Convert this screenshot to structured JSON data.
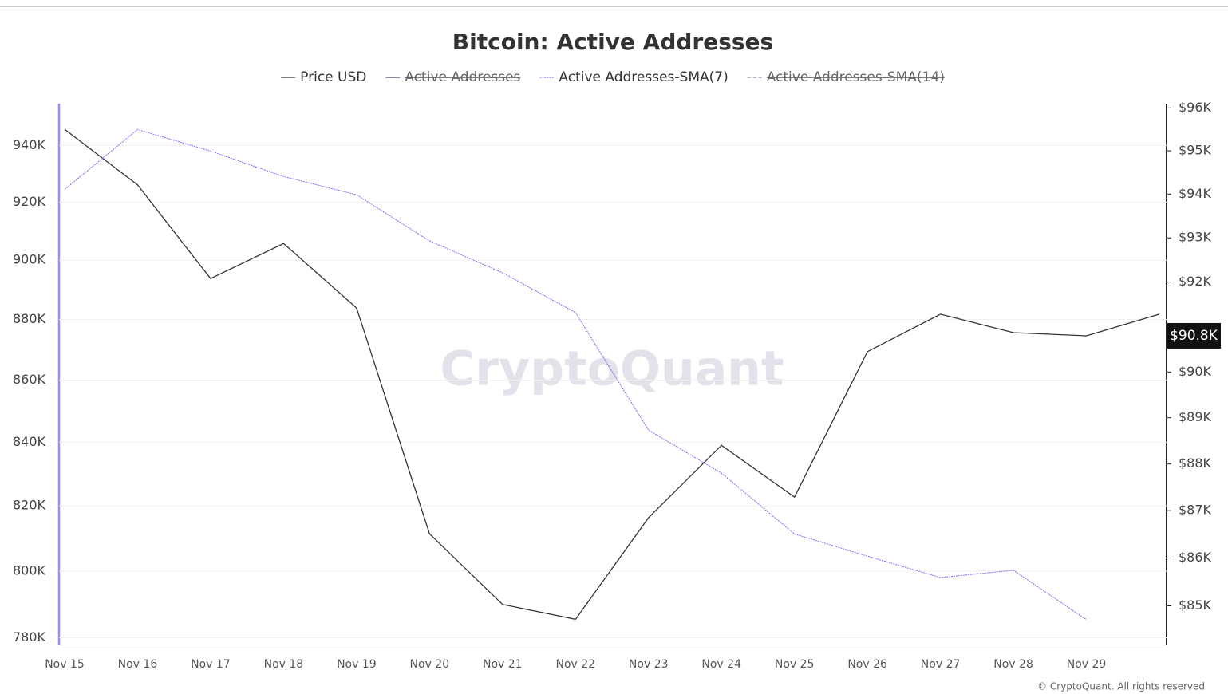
{
  "chart_data": {
    "type": "line",
    "title": "Bitcoin: Active Addresses",
    "categories": [
      "Nov 15",
      "Nov 16",
      "Nov 17",
      "Nov 18",
      "Nov 19",
      "Nov 20",
      "Nov 21",
      "Nov 22",
      "Nov 23",
      "Nov 24",
      "Nov 25",
      "Nov 26",
      "Nov 27",
      "Nov 28",
      "Nov 29",
      null
    ],
    "series": [
      {
        "name": "Price USD",
        "color": "#333333",
        "style": "solid",
        "visible": true,
        "axis": "y2",
        "values": [
          95500,
          94210,
          92080,
          92870,
          91420,
          86510,
          85030,
          84720,
          86850,
          88400,
          87290,
          90450,
          91280,
          90870,
          90800,
          91280
        ]
      },
      {
        "name": "Active Addresses",
        "color": "#4b4b6b",
        "style": "solid",
        "visible": false
      },
      {
        "name": "Active Addresses-SMA(7)",
        "color": "#7b6cf6",
        "style": "dotted",
        "visible": true,
        "values": [
          924500,
          945700,
          938000,
          929000,
          922600,
          906600,
          895700,
          882300,
          843900,
          830200,
          811300,
          804500,
          798000,
          800200,
          785400,
          null
        ]
      },
      {
        "name": "Active Addresses-SMA(14)",
        "color": "#7a7a9a",
        "style": "dashed",
        "visible": false
      }
    ],
    "ylim": [
      778000,
      955000
    ],
    "log_scale_y": true,
    "yticks": [
      {
        "value": 780000,
        "label": "780K"
      },
      {
        "value": 800000,
        "label": "800K"
      },
      {
        "value": 820000,
        "label": "820K"
      },
      {
        "value": 840000,
        "label": "840K"
      },
      {
        "value": 860000,
        "label": "860K"
      },
      {
        "value": 880000,
        "label": "880K"
      },
      {
        "value": 900000,
        "label": "900K"
      },
      {
        "value": 920000,
        "label": "920K"
      },
      {
        "value": 940000,
        "label": "940K"
      }
    ],
    "y2lim": [
      84200,
      96100
    ],
    "log_scale_y2": true,
    "y2ticks": [
      {
        "value": 85000,
        "label": "$85K"
      },
      {
        "value": 86000,
        "label": "$86K"
      },
      {
        "value": 87000,
        "label": "$87K"
      },
      {
        "value": 88000,
        "label": "$88K"
      },
      {
        "value": 89000,
        "label": "$89K"
      },
      {
        "value": 90000,
        "label": "$90K"
      },
      {
        "value": 92000,
        "label": "$92K"
      },
      {
        "value": 93000,
        "label": "$93K"
      },
      {
        "value": 94000,
        "label": "$94K"
      },
      {
        "value": 95000,
        "label": "$95K"
      },
      {
        "value": 96000,
        "label": "$96K"
      }
    ],
    "current_value": {
      "value": 90800,
      "label": "$90.8K"
    },
    "grid": true,
    "watermark": "CryptoQuant",
    "copyright": "© CryptoQuant. All rights reserved"
  }
}
